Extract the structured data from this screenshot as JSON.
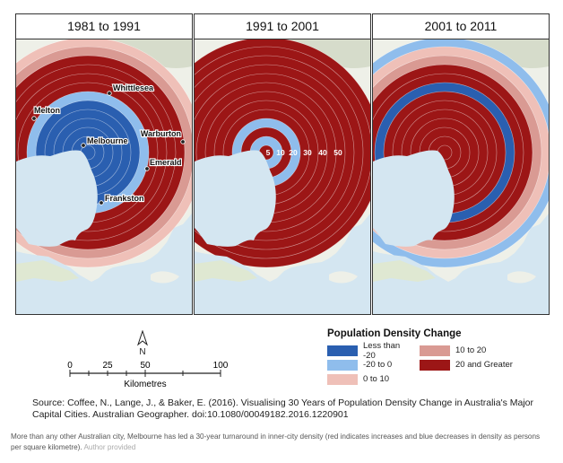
{
  "panels": [
    {
      "title": "1981 to 1991",
      "rings": [
        "#2a5fb0",
        "#2a5fb0",
        "#2a5fb0",
        "#2a5fb0",
        "#2a5fb0",
        "#2a5fb0",
        "#8fbdec",
        "#9c1616",
        "#9c1616",
        "#9c1616",
        "#9c1616",
        "#d99a93",
        "#efc0b8"
      ]
    },
    {
      "title": "1991 to 2001",
      "rings": [
        "#9c1616",
        "#8fbdec",
        "#9c1616",
        "#8fbdec",
        "#9c1616",
        "#9c1616",
        "#9c1616",
        "#9c1616",
        "#9c1616",
        "#9c1616",
        "#9c1616",
        "#9c1616",
        "#9c1616"
      ]
    },
    {
      "title": "2001 to 2011",
      "rings": [
        "#9c1616",
        "#9c1616",
        "#9c1616",
        "#9c1616",
        "#9c1616",
        "#9c1616",
        "#9c1616",
        "#2a5fb0",
        "#9c1616",
        "#9c1616",
        "#d99a93",
        "#efc0b8",
        "#8fbdec"
      ]
    }
  ],
  "places": [
    {
      "name": "Whittlesea"
    },
    {
      "name": "Melton"
    },
    {
      "name": "Melbourne"
    },
    {
      "name": "Warburton"
    },
    {
      "name": "Emerald"
    },
    {
      "name": "Frankston"
    }
  ],
  "distance_labels": [
    "5",
    "10",
    "20",
    "30",
    "40",
    "50"
  ],
  "north_label": "N",
  "scale": {
    "ticks": [
      "0",
      "25",
      "50",
      "100"
    ],
    "unit": "Kilometres"
  },
  "legend": {
    "title": "Population Density Change",
    "items": [
      {
        "label": "Less than -20",
        "color": "#2a5fb0"
      },
      {
        "label": "10 to 20",
        "color": "#d99a93"
      },
      {
        "label": "-20 to 0",
        "color": "#8fbdec"
      },
      {
        "label": "20 and Greater",
        "color": "#9c1616"
      },
      {
        "label": "0 to 10",
        "color": "#efc0b8"
      }
    ]
  },
  "source": "Source: Coffee, N., Lange, J., & Baker, E. (2016). Visualising 30 Years of Population Density Change in Australia's Major Capital Cities. Australian Geographer. doi:10.1080/00049182.2016.1220901",
  "caption": "More than any other Australian city, Melbourne has led a 30-year turnaround in inner-city density (red indicates increases and blue decreases in density as persons per square kilometre).",
  "credit": "Author provided",
  "colors": {
    "sea": "#d4e6f1",
    "land": "#eef0e8",
    "green": "#dfe8d2",
    "hills": "#d6dccb"
  }
}
